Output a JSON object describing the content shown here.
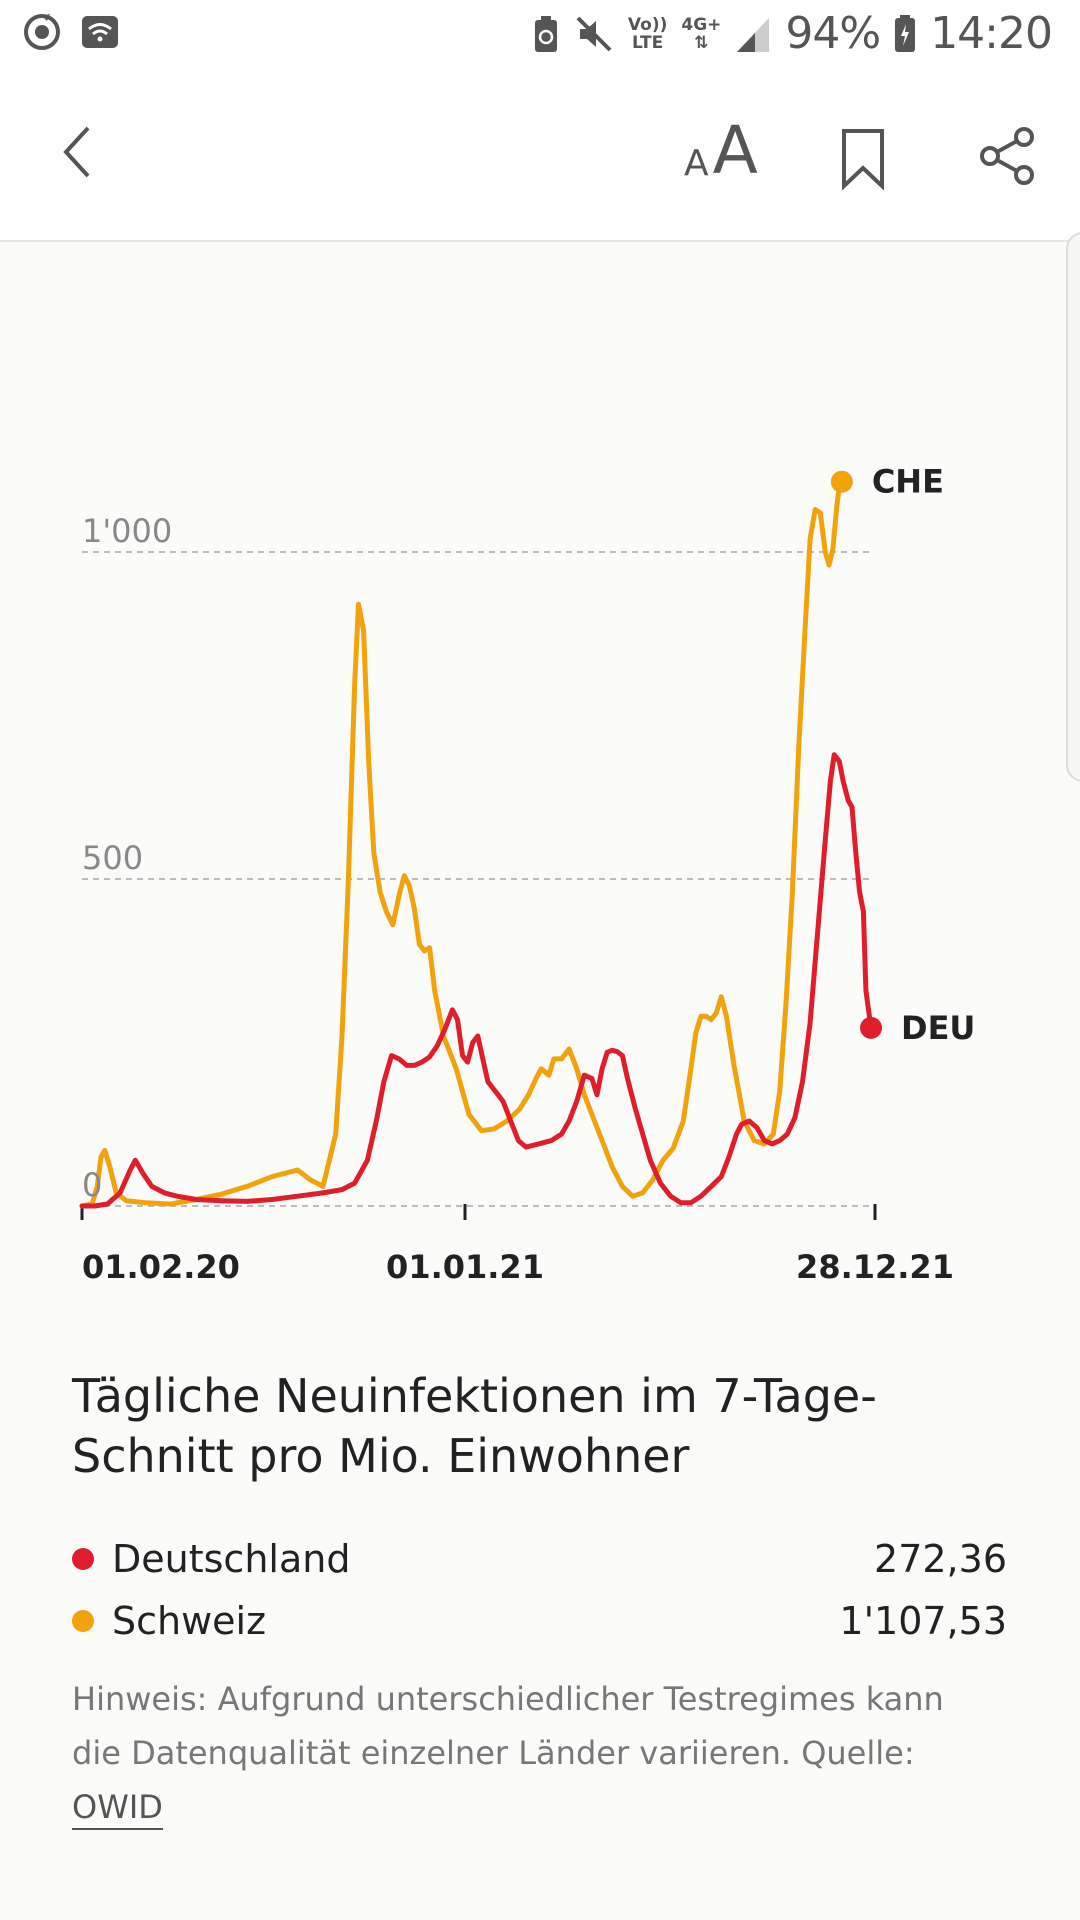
{
  "status_bar": {
    "battery": "94%",
    "time": "14:20",
    "volte_top": "Vo))",
    "volte_bottom": "LTE",
    "network": "4G+"
  },
  "toolbar": {
    "font_small": "A",
    "font_large": "A"
  },
  "colors": {
    "deu": "#e01e2b",
    "che": "#f2a20c",
    "grid": "#bdbdbd"
  },
  "chart_data": {
    "type": "line",
    "x_ticks": [
      "01.02.20",
      "01.01.21",
      "28.12.21"
    ],
    "y_ticks": [
      "0",
      "500",
      "1'000"
    ],
    "ylim": [
      0,
      1250
    ],
    "grid": "horizontal dashed",
    "series": [
      {
        "name": "CHE",
        "color": "#f2a20c",
        "points": [
          [
            0,
            0
          ],
          [
            8,
            3
          ],
          [
            12,
            30
          ],
          [
            15,
            75
          ],
          [
            18,
            85
          ],
          [
            22,
            60
          ],
          [
            27,
            20
          ],
          [
            35,
            8
          ],
          [
            50,
            5
          ],
          [
            70,
            3
          ],
          [
            90,
            10
          ],
          [
            110,
            18
          ],
          [
            130,
            30
          ],
          [
            150,
            45
          ],
          [
            170,
            55
          ],
          [
            180,
            40
          ],
          [
            190,
            30
          ],
          [
            200,
            110
          ],
          [
            205,
            260
          ],
          [
            210,
            500
          ],
          [
            215,
            800
          ],
          [
            218,
            920
          ],
          [
            222,
            880
          ],
          [
            226,
            680
          ],
          [
            230,
            540
          ],
          [
            235,
            480
          ],
          [
            240,
            450
          ],
          [
            245,
            430
          ],
          [
            250,
            475
          ],
          [
            254,
            505
          ],
          [
            258,
            490
          ],
          [
            262,
            455
          ],
          [
            266,
            400
          ],
          [
            270,
            390
          ],
          [
            274,
            395
          ],
          [
            278,
            330
          ],
          [
            285,
            260
          ],
          [
            295,
            210
          ],
          [
            305,
            140
          ],
          [
            315,
            115
          ],
          [
            325,
            118
          ],
          [
            335,
            130
          ],
          [
            345,
            148
          ],
          [
            352,
            170
          ],
          [
            358,
            195
          ],
          [
            362,
            210
          ],
          [
            368,
            200
          ],
          [
            372,
            225
          ],
          [
            378,
            225
          ],
          [
            384,
            240
          ],
          [
            390,
            210
          ],
          [
            396,
            170
          ],
          [
            402,
            140
          ],
          [
            410,
            100
          ],
          [
            418,
            60
          ],
          [
            426,
            30
          ],
          [
            434,
            15
          ],
          [
            442,
            20
          ],
          [
            450,
            40
          ],
          [
            458,
            70
          ],
          [
            466,
            88
          ],
          [
            474,
            130
          ],
          [
            480,
            210
          ],
          [
            484,
            265
          ],
          [
            488,
            290
          ],
          [
            492,
            290
          ],
          [
            496,
            285
          ],
          [
            500,
            295
          ],
          [
            504,
            320
          ],
          [
            508,
            290
          ],
          [
            514,
            215
          ],
          [
            522,
            130
          ],
          [
            530,
            100
          ],
          [
            538,
            95
          ],
          [
            545,
            110
          ],
          [
            550,
            175
          ],
          [
            555,
            310
          ],
          [
            560,
            480
          ],
          [
            565,
            700
          ],
          [
            570,
            880
          ],
          [
            574,
            1020
          ],
          [
            578,
            1065
          ],
          [
            582,
            1060
          ],
          [
            586,
            1000
          ],
          [
            589,
            980
          ],
          [
            592,
            1005
          ],
          [
            595,
            1070
          ],
          [
            597,
            1100
          ],
          [
            599,
            1107.5
          ]
        ]
      },
      {
        "name": "DEU",
        "color": "#e01e2b",
        "points": [
          [
            0,
            0
          ],
          [
            10,
            0
          ],
          [
            20,
            3
          ],
          [
            30,
            20
          ],
          [
            38,
            55
          ],
          [
            42,
            70
          ],
          [
            48,
            50
          ],
          [
            55,
            30
          ],
          [
            65,
            20
          ],
          [
            75,
            15
          ],
          [
            90,
            10
          ],
          [
            110,
            8
          ],
          [
            130,
            7
          ],
          [
            150,
            10
          ],
          [
            170,
            15
          ],
          [
            190,
            20
          ],
          [
            205,
            25
          ],
          [
            215,
            35
          ],
          [
            225,
            70
          ],
          [
            232,
            130
          ],
          [
            238,
            190
          ],
          [
            244,
            230
          ],
          [
            250,
            225
          ],
          [
            256,
            215
          ],
          [
            262,
            215
          ],
          [
            268,
            220
          ],
          [
            274,
            228
          ],
          [
            280,
            245
          ],
          [
            286,
            270
          ],
          [
            292,
            300
          ],
          [
            296,
            285
          ],
          [
            300,
            230
          ],
          [
            304,
            220
          ],
          [
            308,
            250
          ],
          [
            312,
            260
          ],
          [
            316,
            225
          ],
          [
            320,
            190
          ],
          [
            326,
            175
          ],
          [
            332,
            160
          ],
          [
            338,
            130
          ],
          [
            344,
            100
          ],
          [
            350,
            90
          ],
          [
            360,
            95
          ],
          [
            370,
            100
          ],
          [
            378,
            110
          ],
          [
            384,
            130
          ],
          [
            390,
            160
          ],
          [
            396,
            200
          ],
          [
            402,
            195
          ],
          [
            406,
            170
          ],
          [
            410,
            210
          ],
          [
            414,
            235
          ],
          [
            418,
            238
          ],
          [
            422,
            236
          ],
          [
            426,
            230
          ],
          [
            430,
            195
          ],
          [
            436,
            150
          ],
          [
            442,
            110
          ],
          [
            448,
            70
          ],
          [
            456,
            35
          ],
          [
            464,
            15
          ],
          [
            472,
            5
          ],
          [
            480,
            5
          ],
          [
            488,
            15
          ],
          [
            496,
            30
          ],
          [
            504,
            45
          ],
          [
            510,
            75
          ],
          [
            516,
            110
          ],
          [
            520,
            125
          ],
          [
            526,
            130
          ],
          [
            532,
            120
          ],
          [
            538,
            100
          ],
          [
            544,
            95
          ],
          [
            550,
            100
          ],
          [
            556,
            110
          ],
          [
            562,
            135
          ],
          [
            568,
            190
          ],
          [
            574,
            280
          ],
          [
            580,
            420
          ],
          [
            586,
            560
          ],
          [
            590,
            650
          ],
          [
            593,
            690
          ],
          [
            597,
            680
          ],
          [
            600,
            650
          ],
          [
            604,
            620
          ],
          [
            607,
            610
          ],
          [
            610,
            540
          ],
          [
            613,
            480
          ],
          [
            616,
            450
          ],
          [
            618,
            330
          ],
          [
            620,
            300
          ],
          [
            622,
            272.4
          ]
        ]
      }
    ],
    "end_labels": {
      "che": "CHE",
      "deu": "DEU"
    }
  },
  "caption": "Tägliche Neuinfektionen im 7-Tage-Schnitt pro Mio. Einwohner",
  "legend": [
    {
      "name": "Deutschland",
      "value": "272,36",
      "color": "#e01e2b"
    },
    {
      "name": "Schweiz",
      "value": "1'107,53",
      "color": "#f2a20c"
    }
  ],
  "note": {
    "text": "Hinweis: Aufgrund unterschiedlicher Testregimes kann die Datenqualität einzelner Länder variieren. Quelle: ",
    "source_link": "OWID"
  }
}
